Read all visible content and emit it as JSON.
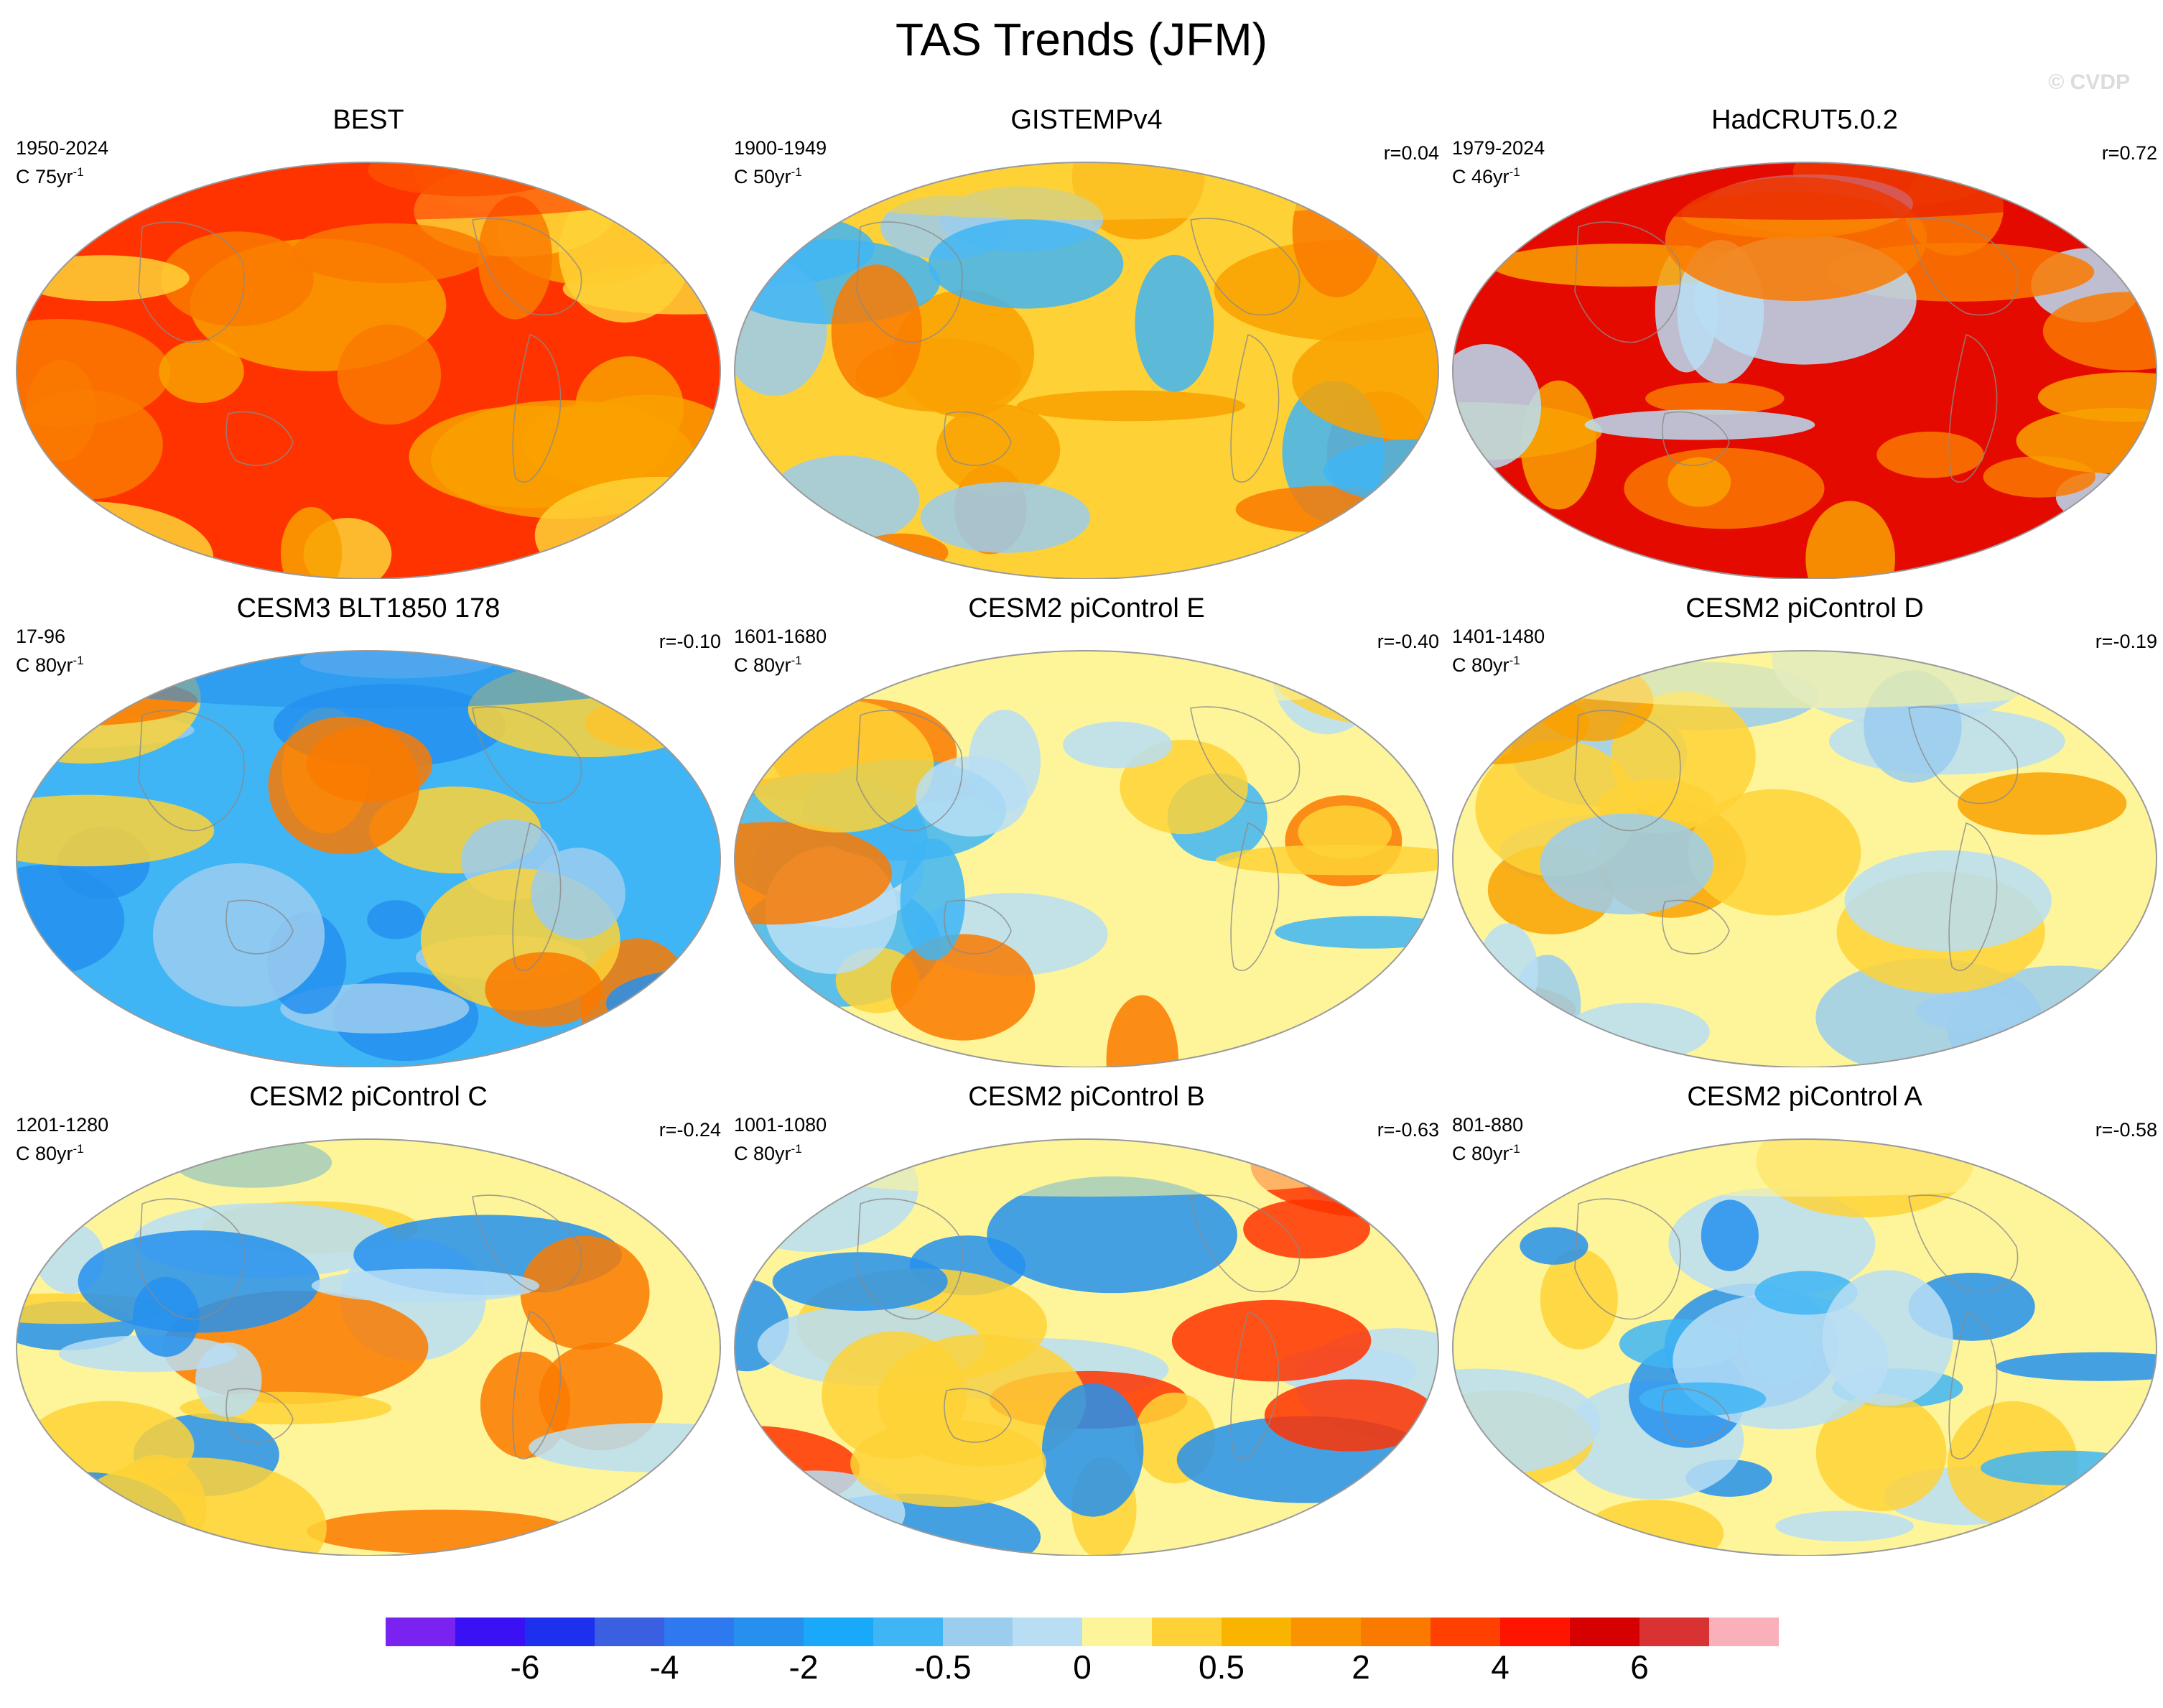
{
  "title": "TAS Trends (JFM)",
  "watermark": "© CVDP",
  "units": {
    "base": "C",
    "sup": "-1"
  },
  "panels": [
    {
      "name": "BEST",
      "period": "1950-2024",
      "span": "75yr",
      "corr": "",
      "pattern": "warm",
      "palette": [
        "#ff3300",
        "#fa7a00",
        "#f9a100",
        "#fed236"
      ]
    },
    {
      "name": "GISTEMPv4",
      "period": "1900-1949",
      "span": "50yr",
      "corr": "r=0.04",
      "pattern": "mixed",
      "palette": [
        "#fed236",
        "#f9a100",
        "#9bcdef",
        "#fa7a00",
        "#3fb5f5"
      ]
    },
    {
      "name": "HadCRUT5.0.2",
      "period": "1979-2024",
      "span": "46yr",
      "corr": "r=0.72",
      "pattern": "warm",
      "palette": [
        "#e50a00",
        "#fa7a00",
        "#f9a100",
        "#b9def4"
      ]
    },
    {
      "name": "CESM3 BLT1850 178",
      "period": "17-96",
      "span": "80yr",
      "corr": "r=-0.10",
      "pattern": "cool",
      "palette": [
        "#3fb5f5",
        "#2590ee",
        "#9bcdef",
        "#fa7a00",
        "#fed236"
      ]
    },
    {
      "name": "CESM2 piControl E",
      "period": "1601-1680",
      "span": "80yr",
      "corr": "r=-0.40",
      "pattern": "neutral",
      "palette": [
        "#fef59a",
        "#b9def4",
        "#3fb5f5",
        "#fa7a00",
        "#fed236"
      ]
    },
    {
      "name": "CESM2 piControl D",
      "period": "1401-1480",
      "span": "80yr",
      "corr": "r=-0.19",
      "pattern": "neutral",
      "palette": [
        "#fef59a",
        "#b9def4",
        "#9bcdef",
        "#fed236",
        "#f9a100"
      ]
    },
    {
      "name": "CESM2 piControl C",
      "period": "1201-1280",
      "span": "80yr",
      "corr": "r=-0.24",
      "pattern": "neutral",
      "palette": [
        "#fef59a",
        "#b9def4",
        "#2590ee",
        "#fa7a00",
        "#fed236"
      ]
    },
    {
      "name": "CESM2 piControl B",
      "period": "1001-1080",
      "span": "80yr",
      "corr": "r=-0.63",
      "pattern": "neutral",
      "palette": [
        "#fef59a",
        "#b9def4",
        "#2590ee",
        "#ff3300",
        "#fed236"
      ]
    },
    {
      "name": "CESM2 piControl A",
      "period": "801-880",
      "span": "80yr",
      "corr": "r=-0.58",
      "pattern": "neutral",
      "palette": [
        "#fef59a",
        "#b9def4",
        "#2590ee",
        "#fed236",
        "#3fb5f5"
      ]
    }
  ],
  "colorbar": {
    "colors": [
      "#7a22f0",
      "#3a10f5",
      "#1c30ee",
      "#3a5fe0",
      "#2e78f0",
      "#2590ee",
      "#1aa8f8",
      "#3fb5f5",
      "#9bcdef",
      "#b9def4",
      "#fef59a",
      "#fed236",
      "#f9b400",
      "#f99300",
      "#fa7a00",
      "#ff4000",
      "#ff1400",
      "#d60000",
      "#d93232",
      "#f9b0b8"
    ],
    "labels": [
      "-6",
      "-4",
      "-2",
      "-0.5",
      "0",
      "0.5",
      "2",
      "4",
      "6"
    ]
  }
}
